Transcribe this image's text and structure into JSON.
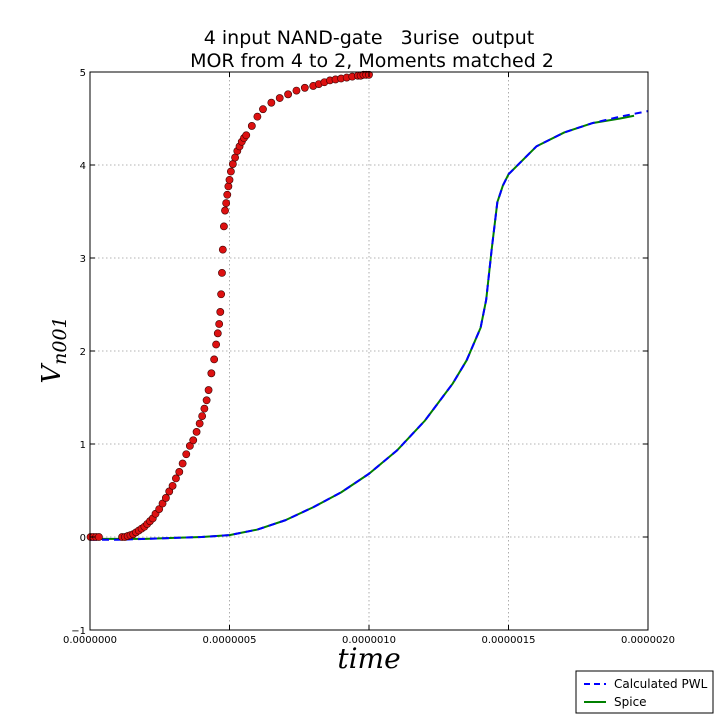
{
  "chart_data": {
    "type": "line",
    "title": "4 input NAND-gate   3urise  output",
    "subtitle": "MOR from 4 to 2, Moments matched 2",
    "xlabel": "time",
    "ylabel": "V",
    "ylabel_subscript": "n001",
    "xlim": [
      0,
      2e-06
    ],
    "ylim": [
      -1,
      5
    ],
    "x_ticks": [
      0,
      5e-07,
      1e-06,
      1.5e-06,
      2e-06
    ],
    "x_tick_labels": [
      "0.0000000",
      "0.0000005",
      "0.0000010",
      "0.0000015",
      "0.0000020"
    ],
    "y_ticks": [
      -1,
      0,
      1,
      2,
      3,
      4,
      5
    ],
    "y_tick_labels": [
      "−1",
      "0",
      "1",
      "2",
      "3",
      "4",
      "5"
    ],
    "grid": true,
    "legend_position": "bottom-right",
    "legend": [
      "Calculated PWL",
      "Spice"
    ],
    "series": [
      {
        "name": "Calculated PWL",
        "style": "dashed",
        "color": "#0000ff",
        "x": [
          0,
          1e-07,
          2e-07,
          3e-07,
          4e-07,
          5e-07,
          6e-07,
          7e-07,
          8e-07,
          9e-07,
          1e-06,
          1.1e-06,
          1.2e-06,
          1.3e-06,
          1.35e-06,
          1.4e-06,
          1.42e-06,
          1.44e-06,
          1.46e-06,
          1.48e-06,
          1.5e-06,
          1.6e-06,
          1.7e-06,
          1.8e-06,
          1.9e-06,
          2e-06
        ],
        "y": [
          -0.03,
          -0.03,
          -0.02,
          -0.01,
          0.0,
          0.02,
          0.08,
          0.18,
          0.32,
          0.48,
          0.68,
          0.93,
          1.25,
          1.65,
          1.9,
          2.25,
          2.55,
          3.1,
          3.6,
          3.78,
          3.9,
          4.2,
          4.35,
          4.45,
          4.52,
          4.58
        ]
      },
      {
        "name": "Spice",
        "style": "solid",
        "color": "#008000",
        "x": [
          0,
          1e-07,
          2e-07,
          3e-07,
          4e-07,
          5e-07,
          6e-07,
          7e-07,
          8e-07,
          9e-07,
          1e-06,
          1.1e-06,
          1.2e-06,
          1.3e-06,
          1.35e-06,
          1.4e-06,
          1.42e-06,
          1.44e-06,
          1.46e-06,
          1.48e-06,
          1.5e-06,
          1.6e-06,
          1.7e-06,
          1.8e-06,
          1.9e-06,
          1.95e-06
        ],
        "y": [
          -0.02,
          -0.02,
          -0.02,
          -0.01,
          0.0,
          0.02,
          0.08,
          0.18,
          0.32,
          0.48,
          0.68,
          0.93,
          1.25,
          1.65,
          1.9,
          2.25,
          2.55,
          3.1,
          3.6,
          3.78,
          3.9,
          4.2,
          4.35,
          4.45,
          4.5,
          4.53
        ]
      },
      {
        "name": "",
        "style": "markers",
        "color": "#dd1111",
        "x": [
          2e-09,
          1.2e-08,
          2.2e-08,
          3.2e-08,
          1.15e-07,
          1.25e-07,
          1.35e-07,
          1.45e-07,
          1.55e-07,
          1.65e-07,
          1.75e-07,
          1.85e-07,
          1.95e-07,
          2.05e-07,
          2.15e-07,
          2.25e-07,
          2.35e-07,
          2.48e-07,
          2.6e-07,
          2.72e-07,
          2.84e-07,
          2.96e-07,
          3.08e-07,
          3.2e-07,
          3.32e-07,
          3.45e-07,
          3.58e-07,
          3.7e-07,
          3.82e-07,
          3.93e-07,
          4.02e-07,
          4.1e-07,
          4.18e-07,
          4.25e-07,
          4.35e-07,
          4.45e-07,
          4.52e-07,
          4.58e-07,
          4.63e-07,
          4.67e-07,
          4.7e-07,
          4.73e-07,
          4.76e-07,
          4.8e-07,
          4.84e-07,
          4.88e-07,
          4.92e-07,
          4.96e-07,
          5e-07,
          5.05e-07,
          5.12e-07,
          5.2e-07,
          5.28e-07,
          5.36e-07,
          5.44e-07,
          5.52e-07,
          5.6e-07,
          5.8e-07,
          6e-07,
          6.2e-07,
          6.5e-07,
          6.8e-07,
          7.1e-07,
          7.4e-07,
          7.7e-07,
          8e-07,
          8.2e-07,
          8.4e-07,
          8.6e-07,
          8.8e-07,
          9e-07,
          9.2e-07,
          9.4e-07,
          9.6e-07,
          9.7e-07,
          9.8e-07,
          9.9e-07,
          1e-06
        ],
        "y": [
          0.0,
          0.0,
          0.0,
          0.0,
          0.0,
          0.0,
          0.01,
          0.02,
          0.03,
          0.05,
          0.07,
          0.09,
          0.11,
          0.14,
          0.17,
          0.2,
          0.25,
          0.3,
          0.36,
          0.42,
          0.49,
          0.55,
          0.63,
          0.7,
          0.79,
          0.89,
          0.98,
          1.04,
          1.13,
          1.22,
          1.3,
          1.38,
          1.47,
          1.58,
          1.76,
          1.91,
          2.07,
          2.19,
          2.29,
          2.42,
          2.61,
          2.84,
          3.09,
          3.34,
          3.51,
          3.59,
          3.68,
          3.77,
          3.84,
          3.93,
          4.01,
          4.08,
          4.15,
          4.2,
          4.25,
          4.29,
          4.32,
          4.42,
          4.52,
          4.6,
          4.67,
          4.72,
          4.76,
          4.8,
          4.83,
          4.85,
          4.87,
          4.89,
          4.91,
          4.92,
          4.93,
          4.94,
          4.95,
          4.96,
          4.96,
          4.97,
          4.97,
          4.97
        ]
      }
    ]
  }
}
